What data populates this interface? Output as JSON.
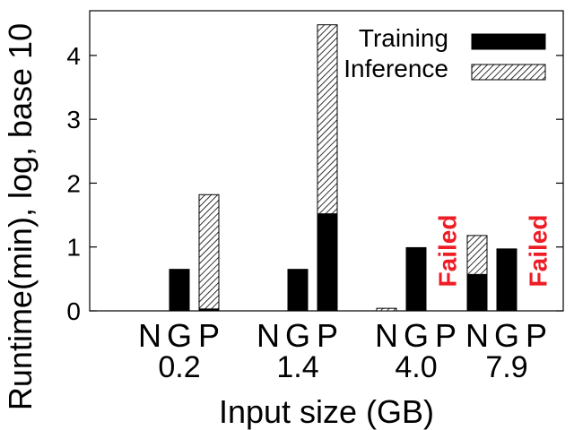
{
  "chart_data": {
    "type": "bar",
    "stacked": true,
    "xlabel": "Input size (GB)",
    "ylabel": "Runtime(min), log, base 10",
    "ylim": [
      0,
      4.7
    ],
    "yticks": [
      0,
      1,
      2,
      3,
      4
    ],
    "ytick_labels": [
      "0",
      "1",
      "2",
      "3",
      "4"
    ],
    "legend": {
      "position": "top-right",
      "entries": [
        {
          "label": "Training",
          "pattern": "solid"
        },
        {
          "label": "Inference",
          "pattern": "hatched"
        }
      ]
    },
    "groups": [
      {
        "label": "0.2",
        "bars": [
          {
            "system": "N",
            "training": 0,
            "inference": 0
          },
          {
            "system": "G",
            "training": 0.65,
            "inference": 0
          },
          {
            "system": "P",
            "training": 0.03,
            "inference": 1.79
          }
        ]
      },
      {
        "label": "1.4",
        "bars": [
          {
            "system": "N",
            "training": 0,
            "inference": 0
          },
          {
            "system": "G",
            "training": 0.65,
            "inference": 0
          },
          {
            "system": "P",
            "training": 1.52,
            "inference": 2.96
          }
        ]
      },
      {
        "label": "4.0",
        "bars": [
          {
            "system": "N",
            "training": 0,
            "inference": 0.04
          },
          {
            "system": "G",
            "training": 0.99,
            "inference": 0
          },
          {
            "system": "P",
            "training": 0,
            "inference": 0,
            "note": "Failed"
          }
        ]
      },
      {
        "label": "7.9",
        "bars": [
          {
            "system": "N",
            "training": 0.57,
            "inference": 0.61
          },
          {
            "system": "G",
            "training": 0.97,
            "inference": 0
          },
          {
            "system": "P",
            "training": 0,
            "inference": 0,
            "note": "Failed"
          }
        ]
      }
    ],
    "colors": {
      "training": "#000000",
      "failed": "#ee1c25"
    }
  }
}
